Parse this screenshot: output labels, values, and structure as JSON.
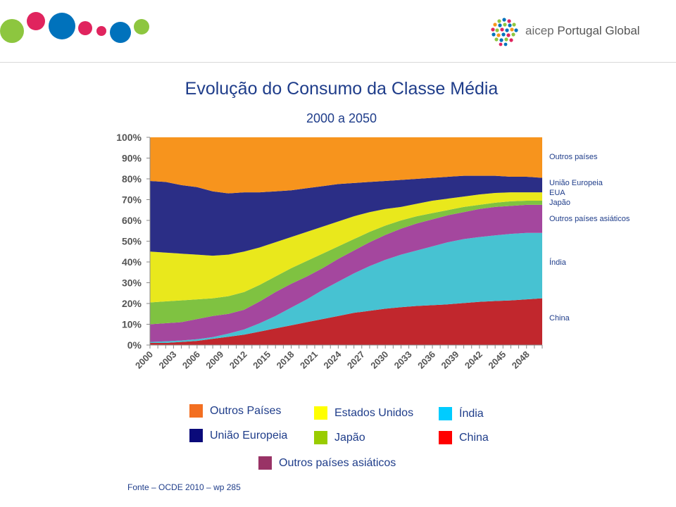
{
  "brand": {
    "logo_text_a": "aicep",
    "logo_text_b": "Portugal Global"
  },
  "title": "Evolução do Consumo da Classe Média",
  "subtitle": "2000 a 2050",
  "source": "Fonte – OCDE 2010 – wp 285",
  "side_labels": {
    "outros_paises": "Outros países",
    "ue": "União Europeia",
    "eua": "EUA",
    "japao": "Japão",
    "outros_asia": "Outros países asiáticos",
    "india": "Índia",
    "china": "China"
  },
  "legend": {
    "outros_paises": "Outros Países",
    "ue": "União Europeia",
    "eua": "Estados Unidos",
    "japao": "Japão",
    "india": "Índia",
    "china": "China",
    "outros_asia": "Outros países asiáticos"
  },
  "colors": {
    "outros_paises": "#F7941D",
    "ue": "#2B2E86",
    "eua": "#E9E81C",
    "japao": "#7FC241",
    "outros_asia": "#A4479E",
    "india": "#47C2D2",
    "china": "#C1272D",
    "legend_outros_paises": "#F36F21",
    "legend_ue": "#0A0A7A",
    "legend_eua": "#FFFF00",
    "legend_japao": "#99CC00",
    "legend_india": "#00CCFF",
    "legend_china": "#FF0000",
    "legend_outros_asia": "#993366",
    "text": "#1F3D8A"
  },
  "chart_data": {
    "type": "area",
    "stacked": true,
    "x": [
      2000,
      2002,
      2004,
      2006,
      2008,
      2010,
      2012,
      2014,
      2016,
      2018,
      2020,
      2022,
      2024,
      2026,
      2028,
      2030,
      2032,
      2034,
      2036,
      2038,
      2040,
      2042,
      2044,
      2046,
      2048,
      2050
    ],
    "x_tick_labels": [
      "2000",
      "2003",
      "2006",
      "2009",
      "2012",
      "2015",
      "2018",
      "2021",
      "2024",
      "2027",
      "2030",
      "2033",
      "2036",
      "2039",
      "2042",
      "2045",
      "2048"
    ],
    "ylim": [
      0,
      100
    ],
    "y_tick_labels": [
      "0%",
      "10%",
      "20%",
      "30%",
      "40%",
      "50%",
      "60%",
      "70%",
      "80%",
      "90%",
      "100%"
    ],
    "y_ticks": [
      0,
      10,
      20,
      30,
      40,
      50,
      60,
      70,
      80,
      90,
      100
    ],
    "series": [
      {
        "name": "China",
        "color_key": "china",
        "cumulative": [
          1,
          1,
          1.5,
          2,
          3,
          4,
          5,
          6.5,
          8,
          9.5,
          11,
          12.5,
          14,
          15.5,
          16.5,
          17.5,
          18.2,
          18.8,
          19.2,
          19.6,
          20.2,
          20.8,
          21.2,
          21.5,
          22,
          22.5
        ]
      },
      {
        "name": "Índia",
        "color_key": "india",
        "cumulative": [
          1.5,
          1.8,
          2.2,
          2.8,
          3.8,
          5.5,
          7.5,
          10.5,
          14,
          18,
          22,
          26.5,
          30.5,
          34.5,
          38,
          41,
          43.5,
          45.5,
          47.5,
          49.5,
          51,
          52,
          52.8,
          53.5,
          54,
          54
        ]
      },
      {
        "name": "Outros países asiáticos",
        "color_key": "outros_asia",
        "cumulative": [
          10,
          10.5,
          11,
          12.5,
          14,
          15,
          17,
          21,
          25.5,
          29.5,
          33,
          37,
          41.5,
          45.5,
          49.5,
          53,
          56,
          58.5,
          60.5,
          62.5,
          64,
          65.5,
          66.5,
          67,
          67.5,
          67.5
        ]
      },
      {
        "name": "Japão",
        "color_key": "japao",
        "cumulative": [
          20.5,
          21,
          21.5,
          22,
          22.5,
          23.5,
          25.5,
          29,
          33,
          37,
          40.5,
          44,
          47.5,
          51,
          54.5,
          57.5,
          60,
          62,
          63.5,
          65,
          66.5,
          67.5,
          68.5,
          69.2,
          69.5,
          69.5
        ]
      },
      {
        "name": "Estados Unidos",
        "color_key": "eua",
        "cumulative": [
          45,
          44.5,
          44,
          43.5,
          43,
          43.5,
          45,
          47,
          49.5,
          52,
          54.5,
          57,
          59.5,
          62,
          64,
          65.5,
          66.5,
          68,
          69.5,
          70.5,
          71.5,
          72.5,
          73.2,
          73.5,
          73.5,
          73.5
        ]
      },
      {
        "name": "União Europeia",
        "color_key": "ue",
        "cumulative": [
          79,
          78.5,
          77,
          76,
          74,
          73,
          73.5,
          73.5,
          74,
          74.5,
          75.5,
          76.5,
          77.5,
          78,
          78.5,
          79,
          79.5,
          80,
          80.5,
          81,
          81.5,
          81.5,
          81.5,
          81,
          81,
          80.5
        ]
      },
      {
        "name": "Outros Países",
        "color_key": "outros_paises",
        "cumulative": [
          100,
          100,
          100,
          100,
          100,
          100,
          100,
          100,
          100,
          100,
          100,
          100,
          100,
          100,
          100,
          100,
          100,
          100,
          100,
          100,
          100,
          100,
          100,
          100,
          100,
          100
        ]
      }
    ],
    "grid": false,
    "legend_position": "bottom"
  }
}
